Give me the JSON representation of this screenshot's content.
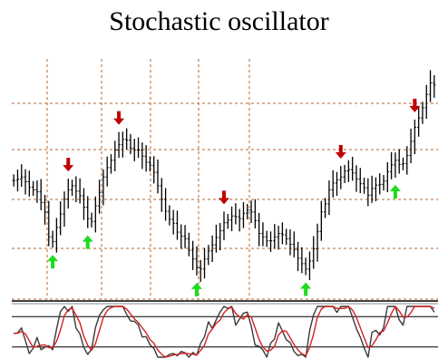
{
  "chart_data": {
    "title": "Stochastic oscillator",
    "type": "line",
    "colors": {
      "price_bars": "#000000",
      "grid": "#b8652a",
      "buy_arrow": "#1ddb1d",
      "sell_arrow": "#c00000",
      "fast_line": "#3a3a3a",
      "slow_line": "#d62020",
      "reference_lines": "#000000"
    },
    "grid": true,
    "signals": {
      "buy": [
        10,
        19,
        47,
        75,
        98
      ],
      "sell": [
        14,
        27,
        54,
        84,
        103
      ]
    },
    "price_closes": [
      59.6,
      59.8,
      60.1,
      59.4,
      58.6,
      58.2,
      57.9,
      56.3,
      54.9,
      51.2,
      50.5,
      52.6,
      54.6,
      56.8,
      58.2,
      58.8,
      58.0,
      57.3,
      55.6,
      53.9,
      53.5,
      55.8,
      57.8,
      60.1,
      61.5,
      62.6,
      64.1,
      64.9,
      65.7,
      65.6,
      64.4,
      64.1,
      64.1,
      63.2,
      62.3,
      61.8,
      60.8,
      58.8,
      56.8,
      55.0,
      53.8,
      53.2,
      51.9,
      51.3,
      50.9,
      49.2,
      47.9,
      46.6,
      46.4,
      47.9,
      49.1,
      50.0,
      51.1,
      52.1,
      53.3,
      53.7,
      54.3,
      54.2,
      53.9,
      54.7,
      55.2,
      54.9,
      53.6,
      51.7,
      51.2,
      50.6,
      50.6,
      51.2,
      51.7,
      51.5,
      50.9,
      50.1,
      49.3,
      48.0,
      47.2,
      46.4,
      47.6,
      49.4,
      52.0,
      54.9,
      56.1,
      58.2,
      59.2,
      59.7,
      60.1,
      61.0,
      61.2,
      60.7,
      59.8,
      59.1,
      58.5,
      57.4,
      58.4,
      58.9,
      59.0,
      59.5,
      60.9,
      61.9,
      62.6,
      62.0,
      62.1,
      63.3,
      65.4,
      67.5,
      68.9,
      70.4,
      72.4,
      74.1,
      73.8
    ],
    "stochastic_fast": [
      46.6,
      47.8,
      57.7,
      32.6,
      7.1,
      17.6,
      38.8,
      14.6,
      19.5,
      22.5,
      14.8,
      55.8,
      89.9,
      100.0,
      90.4,
      100.0,
      57.6,
      46.1,
      19.2,
      5.5,
      15.7,
      58.5,
      82.2,
      93.2,
      100.0,
      100.0,
      100.0,
      100.0,
      100.0,
      84.2,
      71.2,
      70.7,
      63.7,
      39.8,
      40.6,
      24.4,
      17.4,
      0.0,
      0.0,
      0.0,
      5.5,
      7.3,
      2.8,
      11.5,
      8.5,
      0.0,
      9.3,
      3.5,
      27.1,
      40.1,
      69.7,
      56.6,
      73.6,
      89.0,
      100.0,
      95.9,
      100.0,
      63.0,
      75.4,
      86.7,
      88.8,
      60.7,
      23.8,
      21.6,
      14.1,
      0.0,
      27.7,
      36.1,
      67.7,
      51.5,
      34.5,
      28.8,
      11.0,
      3.1,
      5.9,
      0.0,
      52.7,
      83.8,
      100.0,
      100.0,
      100.0,
      100.0,
      100.0,
      88.3,
      100.0,
      100.0,
      100.0,
      78.8,
      56.4,
      39.6,
      18.1,
      0.0,
      48.7,
      53.0,
      43.7,
      58.2,
      100.0,
      100.0,
      100.0,
      73.6,
      63.0,
      100.0,
      100.0,
      100.0,
      100.0,
      100.0,
      100.0,
      100.0,
      88.6
    ],
    "stochastic_slow": [
      46.6,
      47.2,
      50.7,
      46.0,
      32.5,
      19.1,
      21.2,
      23.7,
      24.3,
      18.9,
      18.9,
      31.0,
      53.5,
      81.9,
      93.4,
      96.8,
      82.7,
      67.9,
      41.0,
      23.6,
      13.5,
      26.6,
      52.1,
      78.0,
      91.8,
      97.7,
      100.0,
      100.0,
      100.0,
      94.7,
      85.2,
      75.4,
      68.5,
      58.1,
      48.0,
      34.9,
      27.5,
      13.9,
      5.8,
      0.0,
      1.8,
      4.3,
      5.2,
      7.2,
      7.6,
      6.7,
      5.9,
      4.3,
      13.3,
      23.6,
      45.6,
      55.5,
      66.6,
      73.1,
      87.5,
      95.0,
      98.6,
      86.3,
      79.5,
      75.0,
      83.6,
      78.7,
      57.8,
      35.4,
      19.8,
      11.9,
      13.9,
      21.3,
      43.8,
      51.8,
      51.2,
      38.3,
      24.8,
      14.3,
      6.7,
      3.0,
      19.5,
      45.5,
      78.8,
      94.6,
      100.0,
      100.0,
      100.0,
      96.1,
      96.1,
      96.1,
      100.0,
      92.9,
      78.4,
      58.3,
      38.0,
      19.2,
      22.3,
      33.9,
      48.5,
      51.6,
      67.3,
      86.1,
      100.0,
      91.2,
      78.9,
      78.9,
      87.7,
      100.0,
      100.0,
      100.0,
      100.0,
      100.0,
      96.2
    ],
    "ylim_price": [
      43,
      77
    ],
    "stochastic_levels": [
      80,
      20
    ]
  }
}
